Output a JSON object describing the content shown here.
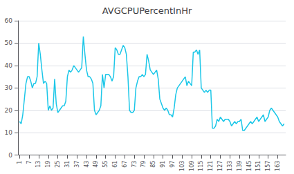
{
  "chart_data": {
    "type": "line",
    "title": "AVGCPUPercentInHr",
    "x": [
      1,
      2,
      3,
      4,
      5,
      6,
      7,
      8,
      9,
      10,
      11,
      12,
      13,
      14,
      15,
      16,
      17,
      18,
      19,
      20,
      21,
      22,
      23,
      24,
      25,
      26,
      27,
      28,
      29,
      30,
      31,
      32,
      33,
      34,
      35,
      36,
      37,
      38,
      39,
      40,
      41,
      42,
      43,
      44,
      45,
      46,
      47,
      48,
      49,
      50,
      51,
      52,
      53,
      54,
      55,
      56,
      57,
      58,
      59,
      60,
      61,
      62,
      63,
      64,
      65,
      66,
      67,
      68,
      69,
      70,
      71,
      72,
      73,
      74,
      75,
      76,
      77,
      78,
      79,
      80,
      81,
      82,
      83,
      84,
      85,
      86,
      87,
      88,
      89,
      90,
      91,
      92,
      93,
      94,
      95,
      96,
      97,
      98,
      99,
      100,
      101,
      102,
      103,
      104,
      105,
      106,
      107,
      108,
      109,
      110,
      111,
      112,
      113,
      114,
      115,
      116,
      117,
      118,
      119,
      120,
      121,
      122,
      123,
      124,
      125,
      126,
      127,
      128,
      129,
      130,
      131,
      132,
      133,
      134,
      135,
      136,
      137,
      138,
      139,
      140,
      141,
      142,
      143,
      144,
      145,
      146,
      147,
      148,
      149,
      150,
      151,
      152,
      153,
      154,
      155,
      156,
      157,
      158,
      159,
      160,
      161,
      162,
      163,
      164,
      165,
      166,
      167
    ],
    "values": [
      15,
      14,
      18,
      25,
      32,
      35,
      35,
      33,
      30,
      32,
      32,
      35,
      50,
      45,
      38,
      32,
      33,
      32,
      20,
      22,
      20,
      21,
      34,
      23,
      19,
      20,
      21,
      22,
      22,
      24,
      35,
      38,
      37,
      38,
      40,
      39,
      38,
      37,
      38,
      39,
      53,
      45,
      38,
      35,
      35,
      34,
      32,
      20,
      18,
      19,
      20,
      22,
      36,
      30,
      36,
      36,
      36,
      35,
      33,
      35,
      48,
      47,
      45,
      45,
      47,
      49,
      48,
      45,
      35,
      20,
      19,
      19,
      20,
      30,
      33,
      35,
      35,
      36,
      35,
      36,
      45,
      42,
      38,
      37,
      36,
      37,
      38,
      34,
      25,
      23,
      21,
      20,
      21,
      20,
      18,
      18,
      17,
      21,
      27,
      30,
      31,
      32,
      33,
      34,
      35,
      31,
      33,
      32,
      31,
      46,
      46,
      47,
      45,
      47,
      30,
      29,
      28,
      29,
      28,
      29,
      29,
      12,
      12,
      13,
      16,
      15,
      17,
      16,
      15,
      16,
      16,
      16,
      15,
      13,
      14,
      15,
      14,
      15,
      15,
      16,
      11,
      11,
      12,
      13,
      14,
      15,
      14,
      15,
      16,
      17,
      15,
      16,
      17,
      18,
      15,
      16,
      17,
      20,
      21,
      20,
      19,
      18,
      17,
      15,
      14,
      13,
      14
    ],
    "color": "#1CC7E8",
    "xlim": [
      0,
      168
    ],
    "xticks": [
      1,
      7,
      13,
      19,
      25,
      31,
      37,
      43,
      49,
      55,
      61,
      67,
      73,
      79,
      85,
      91,
      97,
      103,
      109,
      115,
      121,
      127,
      133,
      139,
      145,
      151,
      157,
      163
    ],
    "ylim": [
      0,
      60
    ],
    "yticks": [
      0,
      10,
      20,
      30,
      40,
      50,
      60
    ],
    "grid": true
  }
}
